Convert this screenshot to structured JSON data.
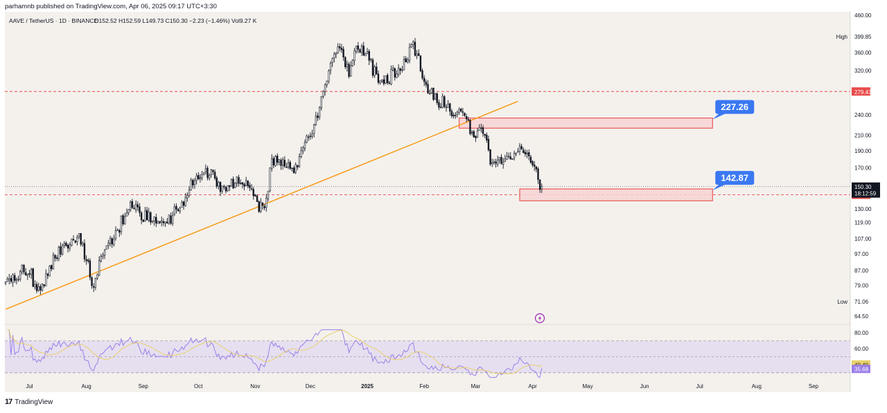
{
  "publisher": "parhamnb published on TradingView.com, Apr 06, 2025 09:17 UTC+3:30",
  "symbol_line": {
    "symbol": "AAVE / TetherUS · 1D · BINANCE",
    "ohlc": "O152.52  H152.59  L149.73  C150.30  −2.23 (−1.46%)  Vol9.27 K"
  },
  "brand": "TradingView",
  "colors": {
    "background": "#f4f1ed",
    "candle": "#131722",
    "trendline": "#f7a021",
    "dashed_red": "#e84b4b",
    "zone_fill": "#f7d4d4",
    "zone_border": "#e84b4b",
    "callout": "#3a78f2",
    "rsi": "#9b7ee8",
    "rsi_ma": "#e8d16a",
    "rsi_band": "#e6dff0"
  },
  "chart_data": [
    {
      "type": "candlestick",
      "title": "AAVE / TetherUS · 1D · BINANCE",
      "x_ticks": [
        "Jul",
        "Aug",
        "Sep",
        "Oct",
        "Nov",
        "Dec",
        "2025",
        "Feb",
        "Mar",
        "Apr",
        "May",
        "Jun",
        "Jul",
        "Aug",
        "Sep"
      ],
      "y_ticks": [
        64.5,
        71.06,
        79.0,
        87.0,
        97.0,
        107.0,
        119.0,
        130.0,
        142.5,
        150.3,
        170.0,
        190.0,
        210.0,
        240.0,
        279.43,
        320.0,
        360.0,
        399.85,
        460.0
      ],
      "y_scale": "log",
      "ylim": [
        62,
        470
      ],
      "high_label": "High",
      "high_value": "399.85",
      "low_label": "Low",
      "low_value": "71.06",
      "last_price": "150.30",
      "countdown": "18:12:59",
      "resistance_line": "279.43",
      "support_line": "142.50",
      "zones": [
        {
          "label": "227.26",
          "low": 220,
          "high": 235,
          "start": "2025-02-20",
          "end": "2025-07-08"
        },
        {
          "label": "142.87",
          "low": 137,
          "high": 148,
          "start": "2025-03-25",
          "end": "2025-07-08"
        }
      ],
      "trendline": {
        "start_date": "2024-06-18",
        "start_price": 67.5,
        "end_date": "2025-03-24",
        "end_price": 262
      },
      "anchors": [
        [
          "2024-06-18",
          82
        ],
        [
          "2024-07-01",
          88
        ],
        [
          "2024-07-05",
          74
        ],
        [
          "2024-07-15",
          96
        ],
        [
          "2024-07-28",
          108
        ],
        [
          "2024-08-05",
          80
        ],
        [
          "2024-08-10",
          95
        ],
        [
          "2024-08-25",
          133
        ],
        [
          "2024-09-06",
          120
        ],
        [
          "2024-09-12",
          115
        ],
        [
          "2024-09-27",
          150
        ],
        [
          "2024-10-05",
          166
        ],
        [
          "2024-10-15",
          150
        ],
        [
          "2024-10-28",
          158
        ],
        [
          "2024-11-03",
          135
        ],
        [
          "2024-11-06",
          126
        ],
        [
          "2024-11-10",
          180
        ],
        [
          "2024-11-22",
          170
        ],
        [
          "2024-12-04",
          230
        ],
        [
          "2024-12-12",
          330
        ],
        [
          "2024-12-16",
          385
        ],
        [
          "2024-12-22",
          320
        ],
        [
          "2024-12-28",
          380
        ],
        [
          "2025-01-08",
          300
        ],
        [
          "2025-01-18",
          318
        ],
        [
          "2025-01-26",
          378
        ],
        [
          "2025-02-03",
          278
        ],
        [
          "2025-02-12",
          258
        ],
        [
          "2025-02-22",
          240
        ],
        [
          "2025-02-28",
          208
        ],
        [
          "2025-03-04",
          215
        ],
        [
          "2025-03-10",
          178
        ],
        [
          "2025-03-20",
          182
        ],
        [
          "2025-03-27",
          193
        ],
        [
          "2025-04-06",
          150
        ]
      ]
    },
    {
      "type": "line",
      "title": "RSI",
      "y_ticks": [
        60.0,
        80.0
      ],
      "bands": [
        30,
        50,
        70
      ],
      "ylim": [
        22,
        88
      ],
      "series": [
        {
          "name": "RSI",
          "last": "35.68"
        },
        {
          "name": "RSI MA",
          "last": "40.40"
        }
      ]
    }
  ]
}
